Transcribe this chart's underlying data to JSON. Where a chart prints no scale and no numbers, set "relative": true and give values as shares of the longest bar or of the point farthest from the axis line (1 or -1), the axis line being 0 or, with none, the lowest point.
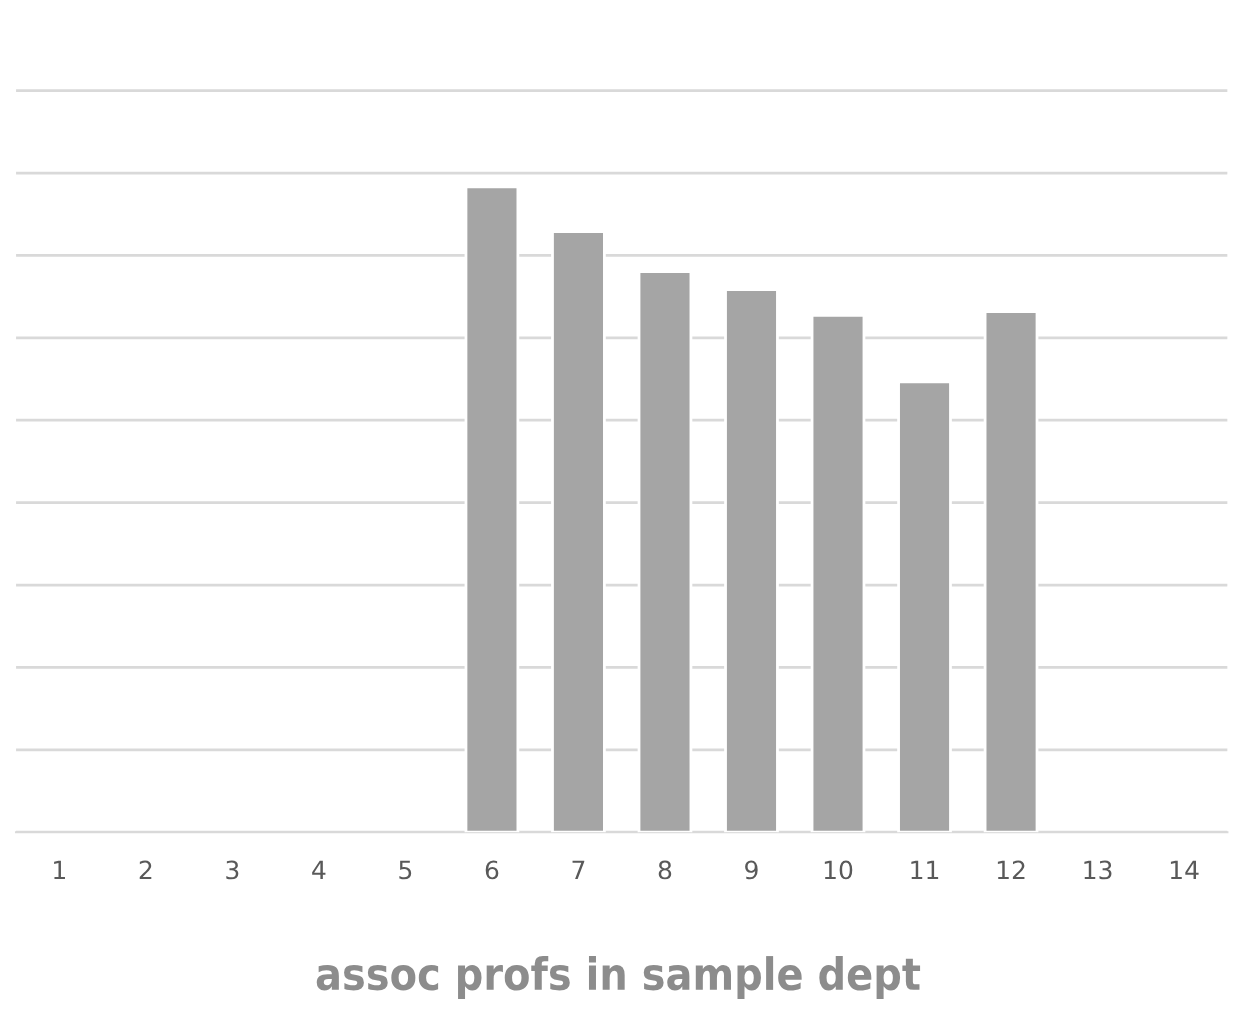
{
  "chart_data": {
    "type": "bar",
    "title": "assoc profs in sample dept",
    "categories": [
      "1",
      "2",
      "3",
      "4",
      "5",
      "6",
      "7",
      "8",
      "9",
      "10",
      "11",
      "12",
      "13",
      "14"
    ],
    "values": [
      null,
      null,
      null,
      null,
      null,
      1,
      0.931,
      0.869,
      0.841,
      0.801,
      0.698,
      0.807,
      null,
      null
    ],
    "color": "#a5a5a5",
    "relative": true,
    "grid": "y",
    "legend": false
  }
}
